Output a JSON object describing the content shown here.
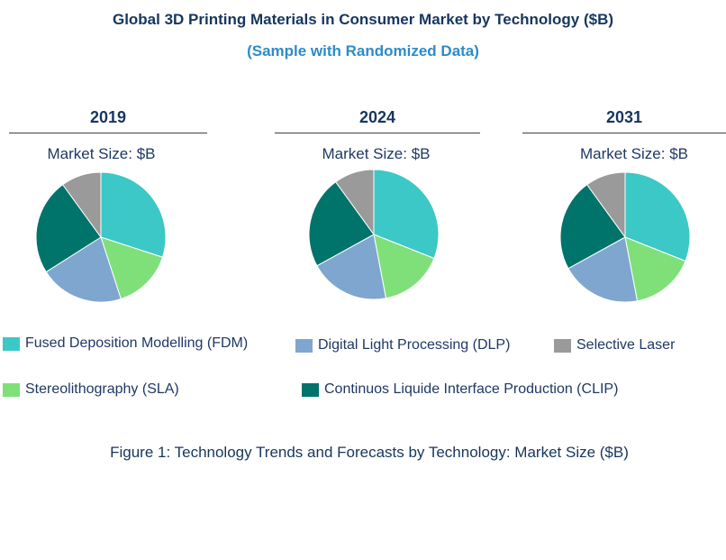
{
  "header": {
    "title": "Global 3D Printing Materials in Consumer Market by Technology ($B)",
    "subtitle": "(Sample with Randomized Data)"
  },
  "caption": "Figure 1: Technology Trends and Forecasts by Technology: Market Size ($B)",
  "colors": {
    "fdm": "#3cc8c6",
    "sla": "#7fe07a",
    "dlp": "#7fa6cf",
    "clip": "#00736b",
    "sls": "#9a9a9a"
  },
  "chart_data": [
    {
      "type": "pie",
      "year": "2019",
      "subtitle": "Market Size: $B",
      "labels": [
        "Fused Deposition Modelling (FDM)",
        "Stereolithography (SLA)",
        "Digital Light Processing (DLP)",
        "Continuos Liquide Interface Production (CLIP)",
        "Selective Laser"
      ],
      "values": [
        30,
        15,
        21,
        24,
        10
      ]
    },
    {
      "type": "pie",
      "year": "2024",
      "subtitle": "Market Size: $B",
      "labels": [
        "Fused Deposition Modelling (FDM)",
        "Stereolithography (SLA)",
        "Digital Light Processing (DLP)",
        "Continuos Liquide Interface Production (CLIP)",
        "Selective Laser"
      ],
      "values": [
        31,
        16,
        20,
        23,
        10
      ]
    },
    {
      "type": "pie",
      "year": "2031",
      "subtitle": "Market Size: $B",
      "labels": [
        "Fused Deposition Modelling (FDM)",
        "Stereolithography (SLA)",
        "Digital Light Processing (DLP)",
        "Continuos Liquide Interface Production (CLIP)",
        "Selective Laser"
      ],
      "values": [
        31,
        16,
        20,
        23,
        10
      ]
    }
  ],
  "legend": [
    {
      "key": "fdm",
      "label": "Fused  Deposition  Modelling  (FDM)"
    },
    {
      "key": "dlp",
      "label": "Digital  Light  Processing  (DLP)"
    },
    {
      "key": "sls",
      "label": "Selective  Laser"
    },
    {
      "key": "sla",
      "label": "Stereolithography  (SLA)"
    },
    {
      "key": "clip",
      "label": "Continuos  Liquide  Interface  Production  (CLIP)"
    }
  ]
}
